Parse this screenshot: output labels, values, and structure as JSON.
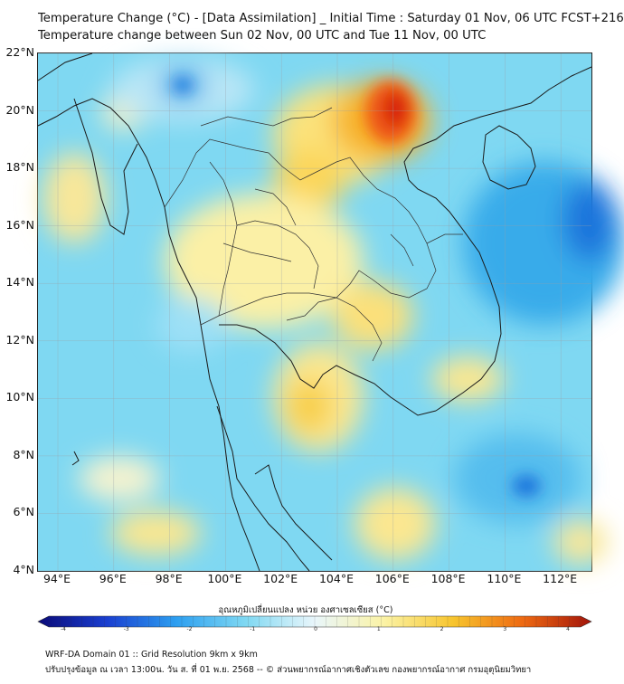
{
  "title": {
    "line1": "Temperature Change (°C) - [Data Assimilation] _ Initial Time : Saturday 01 Nov, 06 UTC FCST+216",
    "line2": "Temperature change between Sun 02 Nov, 00 UTC and Tue 11 Nov, 00 UTC"
  },
  "map": {
    "region": "Thailand / Mainland Southeast Asia",
    "lat_ticks": [
      "22°N",
      "20°N",
      "18°N",
      "16°N",
      "14°N",
      "12°N",
      "10°N",
      "8°N",
      "6°N",
      "4°N"
    ],
    "lon_ticks": [
      "94°E",
      "96°E",
      "98°E",
      "100°E",
      "102°E",
      "104°E",
      "106°E",
      "108°E",
      "110°E",
      "112°E"
    ],
    "grid": true,
    "ocean_color": "#7fd8f2"
  },
  "colorbar": {
    "label": "อุณหภูมิเปลี่ยนแปลง หน่วย องศาเซลเซียส (°C)",
    "ticks": [
      "-4",
      "-3",
      "-2",
      "-1",
      "0",
      "1",
      "2",
      "3",
      "4"
    ],
    "colors": [
      "#0a0a78",
      "#1a3fd0",
      "#2d9ff0",
      "#7fd8f2",
      "#e9f6fb",
      "#fbf3a6",
      "#f7c52e",
      "#ee6a12",
      "#a3140a"
    ]
  },
  "footer": {
    "line1": "WRF-DA Domain 01 :: Grid Resolution 9km x 9km",
    "line2": "ปรับปรุงข้อมูล ณ เวลา 13:00น. วัน ส. ที่ 01 พ.ย. 2568 -- © ส่วนพยากรณ์อากาศเชิงตัวเลข กองพยากรณ์อากาศ กรมอุตุนิยมวิทยา"
  }
}
